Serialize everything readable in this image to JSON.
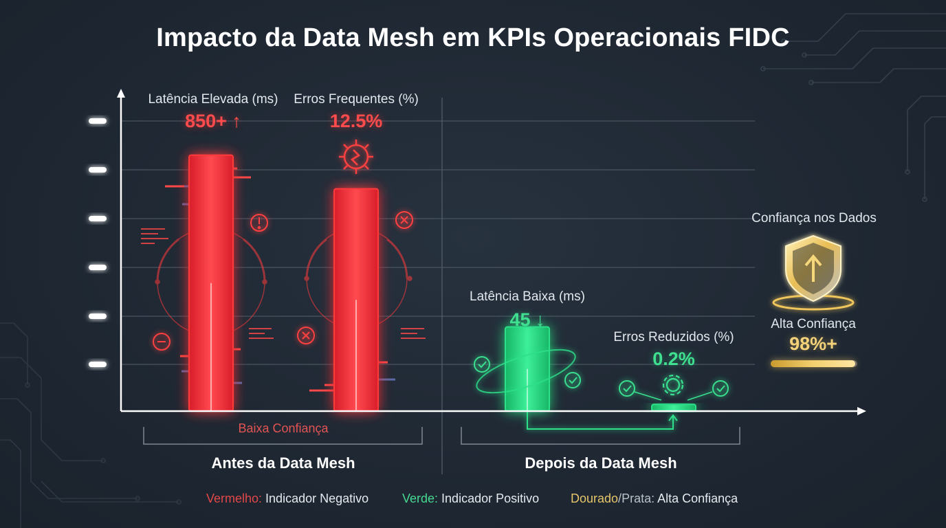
{
  "title": "Impacto da Data Mesh em KPIs Operacionais FIDC",
  "chart_data": {
    "type": "bar",
    "groups": [
      {
        "name": "Antes da Data Mesh",
        "annotation": "Baixa Confiança",
        "bars": [
          {
            "label": "Latência Elevada (ms)",
            "value_text": "850+ ↑",
            "level": 0.76,
            "color": "#ff3b3b"
          },
          {
            "label": "Erros Frequentes (%)",
            "value_text": "12.5%",
            "level": 0.66,
            "color": "#ff3b3b"
          }
        ]
      },
      {
        "name": "Depois da Data Mesh",
        "bars": [
          {
            "label": "Latência Baixa (ms)",
            "value_text": "45 ↓",
            "level": 0.25,
            "color": "#2fe08a"
          },
          {
            "label": "Erros Reduzidos (%)",
            "value_text": "0.2%",
            "level": 0.02,
            "color": "#2fe08a"
          }
        ]
      }
    ],
    "trust": {
      "label": "Confiança nos Dados",
      "status": "Alta Confiança",
      "value_text": "98%+",
      "level": 0.98,
      "colors": [
        "#e7c66a",
        "#b9c0c8"
      ]
    },
    "grid": true
  },
  "legend": {
    "red_key": "Vermelho:",
    "red_text": " Indicador Negativo",
    "green_key": "Verde:",
    "green_text": " Indicador Positivo",
    "gold_key": "Dourado",
    "slash": "/",
    "silver_key": "Prata:",
    "gold_text": " Alta Confiança"
  }
}
